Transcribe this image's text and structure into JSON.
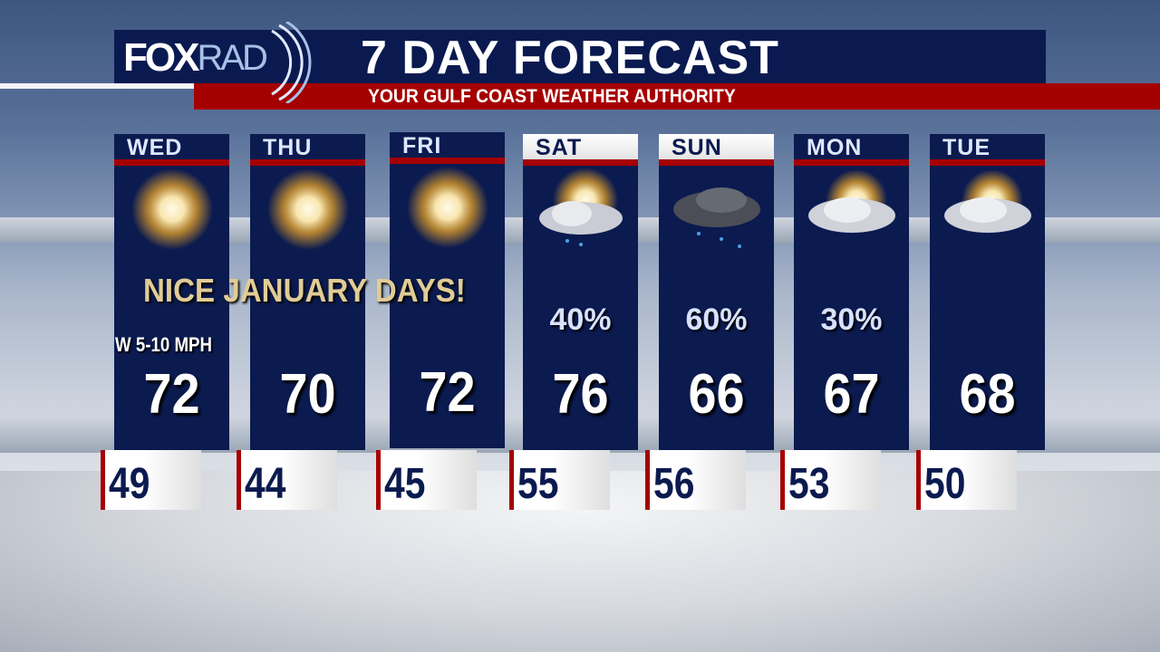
{
  "header": {
    "logo_fox": "FOX",
    "logo_rad": "RAD",
    "title": "7 DAY FORECAST",
    "subtitle": "YOUR GULF COAST WEATHER AUTHORITY"
  },
  "banner": "NICE JANUARY DAYS!",
  "wind": "W 5-10 MPH",
  "colors": {
    "navy": "#0b1a4f",
    "red": "#a50000",
    "gold": "#e1cc95"
  },
  "days": [
    {
      "day": "WED",
      "icon": "sunny-icon",
      "high": "72",
      "low": "49",
      "precip": ""
    },
    {
      "day": "THU",
      "icon": "sunny-icon",
      "high": "70",
      "low": "44",
      "precip": ""
    },
    {
      "day": "FRI",
      "icon": "sunny-icon",
      "high": "72",
      "low": "45",
      "precip": ""
    },
    {
      "day": "SAT",
      "icon": "partly-sunny-showers-icon",
      "high": "76",
      "low": "55",
      "precip": "40%"
    },
    {
      "day": "SUN",
      "icon": "rain-cloud-icon",
      "high": "66",
      "low": "56",
      "precip": "60%"
    },
    {
      "day": "MON",
      "icon": "partly-cloudy-icon",
      "high": "67",
      "low": "53",
      "precip": "30%"
    },
    {
      "day": "TUE",
      "icon": "partly-cloudy-icon",
      "high": "68",
      "low": "50",
      "precip": ""
    }
  ]
}
